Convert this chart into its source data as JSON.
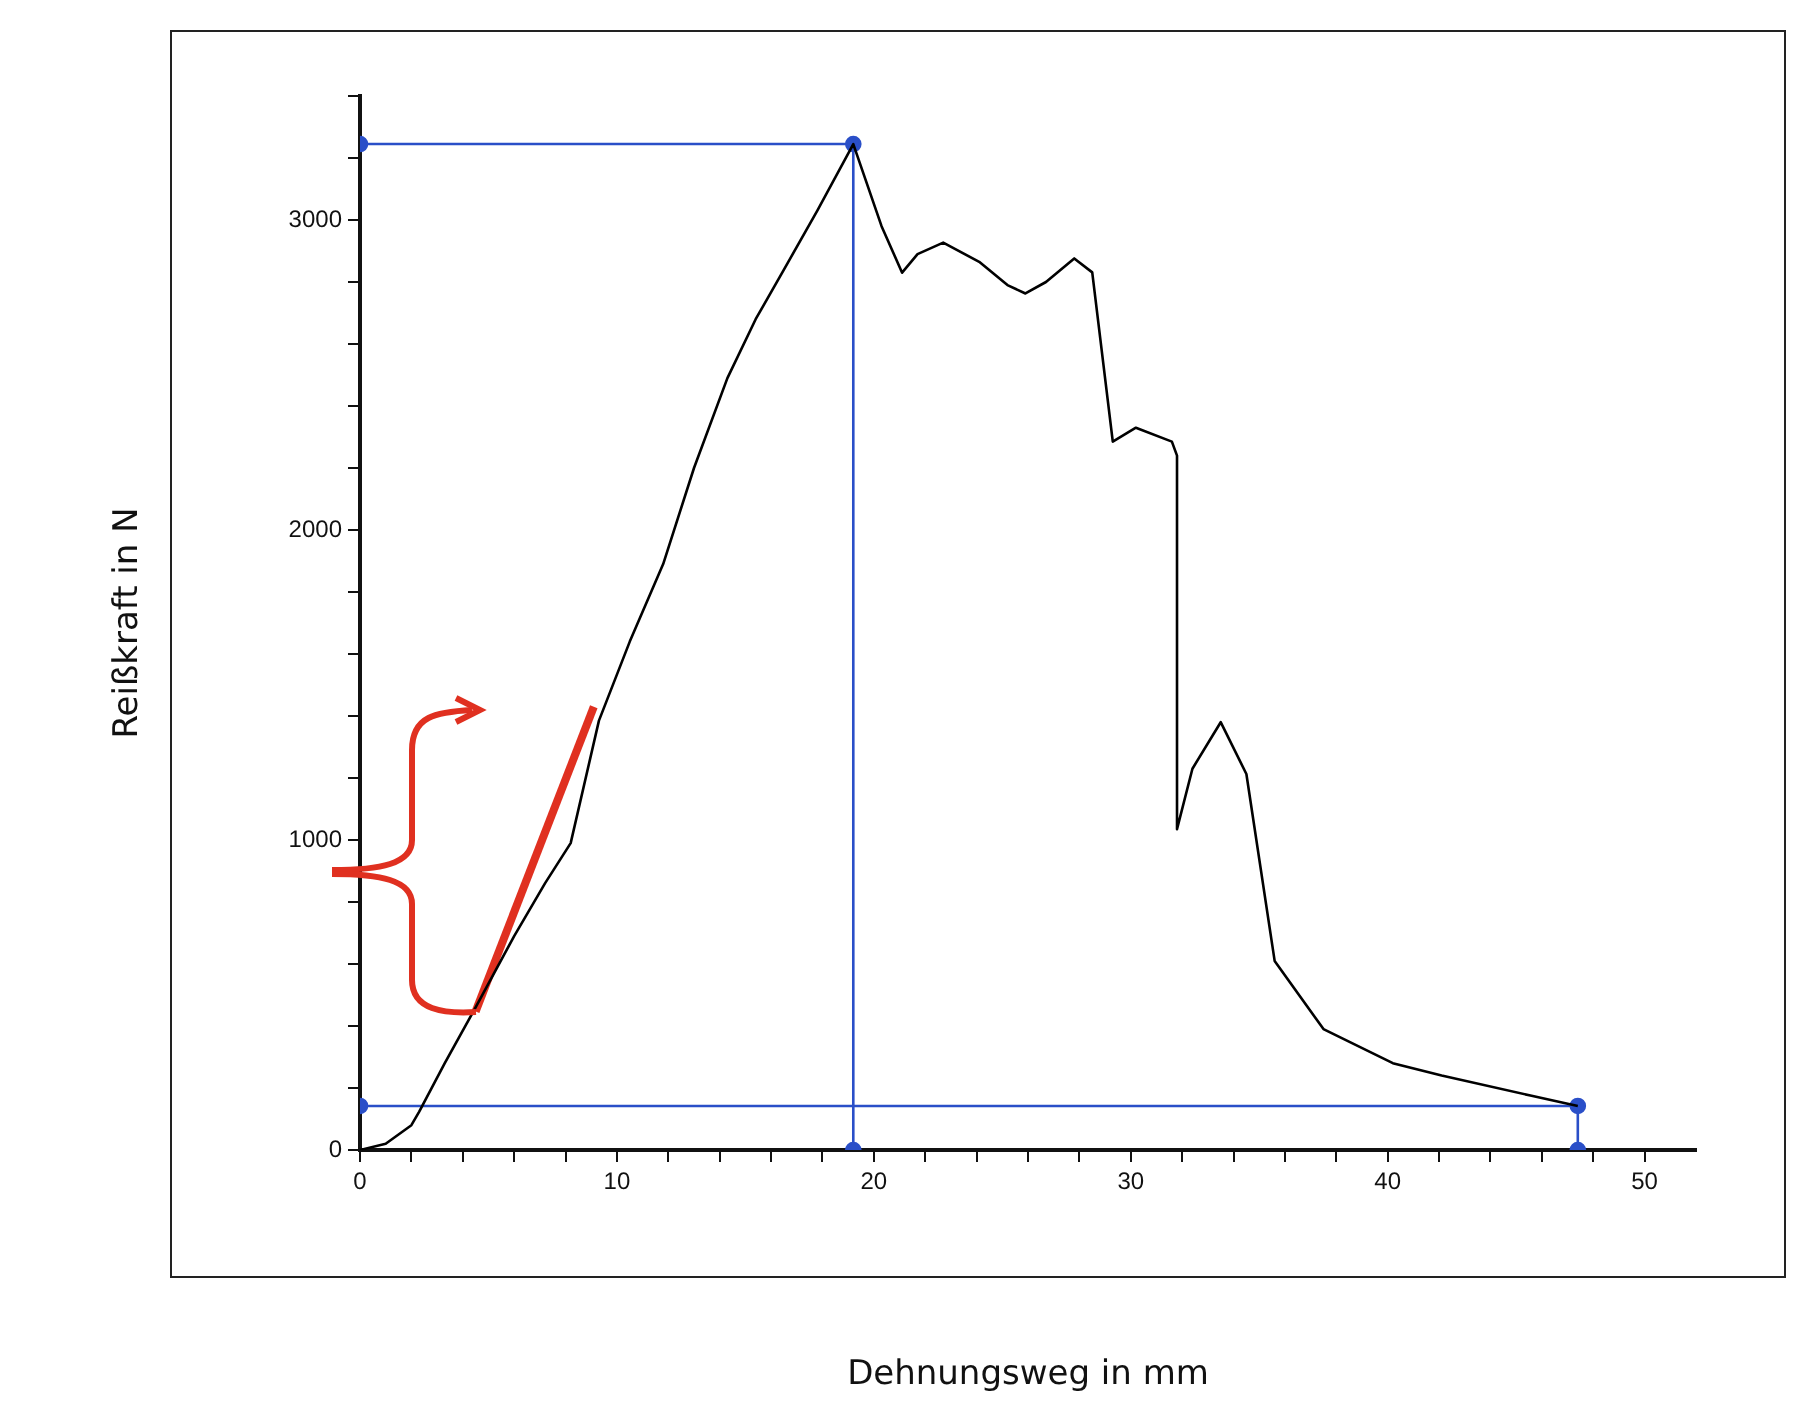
{
  "chart_data": {
    "type": "line",
    "xlabel": "Dehnungsweg in mm",
    "ylabel": "Reißkraft in N",
    "xlim": [
      0,
      52
    ],
    "ylim": [
      0,
      3400
    ],
    "xticks": [
      0,
      {
        "value": 2,
        "label": null
      },
      {
        "value": 4,
        "label": null
      },
      {
        "value": 6,
        "label": null
      },
      {
        "value": 8,
        "label": null
      },
      10,
      {
        "value": 12,
        "label": null
      },
      {
        "value": 14,
        "label": null
      },
      {
        "value": 16,
        "label": null
      },
      {
        "value": 18,
        "label": null
      },
      20,
      {
        "value": 22,
        "label": null
      },
      {
        "value": 24,
        "label": null
      },
      {
        "value": 26,
        "label": null
      },
      {
        "value": 28,
        "label": null
      },
      30,
      {
        "value": 32,
        "label": null
      },
      {
        "value": 34,
        "label": null
      },
      {
        "value": 36,
        "label": null
      },
      {
        "value": 38,
        "label": null
      },
      40,
      {
        "value": 42,
        "label": null
      },
      {
        "value": 44,
        "label": null
      },
      {
        "value": 46,
        "label": null
      },
      {
        "value": 48,
        "label": null
      },
      50
    ],
    "yticks": [
      0,
      {
        "value": 200,
        "label": null
      },
      {
        "value": 400,
        "label": null
      },
      {
        "value": 600,
        "label": null
      },
      {
        "value": 800,
        "label": null
      },
      1000,
      {
        "value": 1200,
        "label": null
      },
      {
        "value": 1400,
        "label": null
      },
      {
        "value": 1600,
        "label": null
      },
      {
        "value": 1800,
        "label": null
      },
      2000,
      {
        "value": 2200,
        "label": null
      },
      {
        "value": 2400,
        "label": null
      },
      {
        "value": 2600,
        "label": null
      },
      {
        "value": 2800,
        "label": null
      },
      3000,
      {
        "value": 3200,
        "label": null
      },
      {
        "value": 3400,
        "label": null
      }
    ],
    "grid": false,
    "legend": false,
    "line_style": "solid",
    "series": [
      {
        "color": "#000000",
        "marker": "none",
        "x": [
          0,
          1,
          2,
          2.3,
          3.3,
          4.5,
          6,
          7.2,
          8.2,
          9.3,
          10.5,
          11.8,
          13,
          14.3,
          15.4,
          16.5,
          17.8,
          19.2,
          20.3,
          21.1,
          21.7,
          22.7,
          24.1,
          25.2,
          25.9,
          26.7,
          27.8,
          28.5,
          29.3,
          30.2,
          31.6,
          31.8,
          31.8,
          32.4,
          33.5,
          34.5,
          35.6,
          37.5,
          40.2,
          42.1,
          45.6,
          47.4
        ],
        "values": [
          0,
          20,
          80,
          123,
          280,
          460,
          690,
          860,
          990,
          1385,
          1640,
          1890,
          2200,
          2490,
          2680,
          2840,
          3030,
          3245,
          2980,
          2830,
          2890,
          2927,
          2865,
          2790,
          2763,
          2800,
          2876,
          2831,
          2285,
          2330,
          2285,
          2240,
          1035,
          1230,
          1380,
          1213,
          610,
          390,
          280,
          240,
          175,
          142
        ]
      },
      {
        "color": "#2a4fc8",
        "marker": "circle",
        "x": [
          0,
          19.2,
          19.2
        ],
        "values": [
          3245,
          3245,
          0
        ]
      },
      {
        "color": "#2a4fc8",
        "marker": "circle",
        "x": [
          0,
          47.4,
          47.4
        ],
        "values": [
          142,
          142,
          0
        ]
      },
      {
        "color": "#e03020",
        "marker": "none",
        "x": [
          4.5,
          9.1
        ],
        "values": [
          447,
          1430
        ]
      }
    ]
  }
}
